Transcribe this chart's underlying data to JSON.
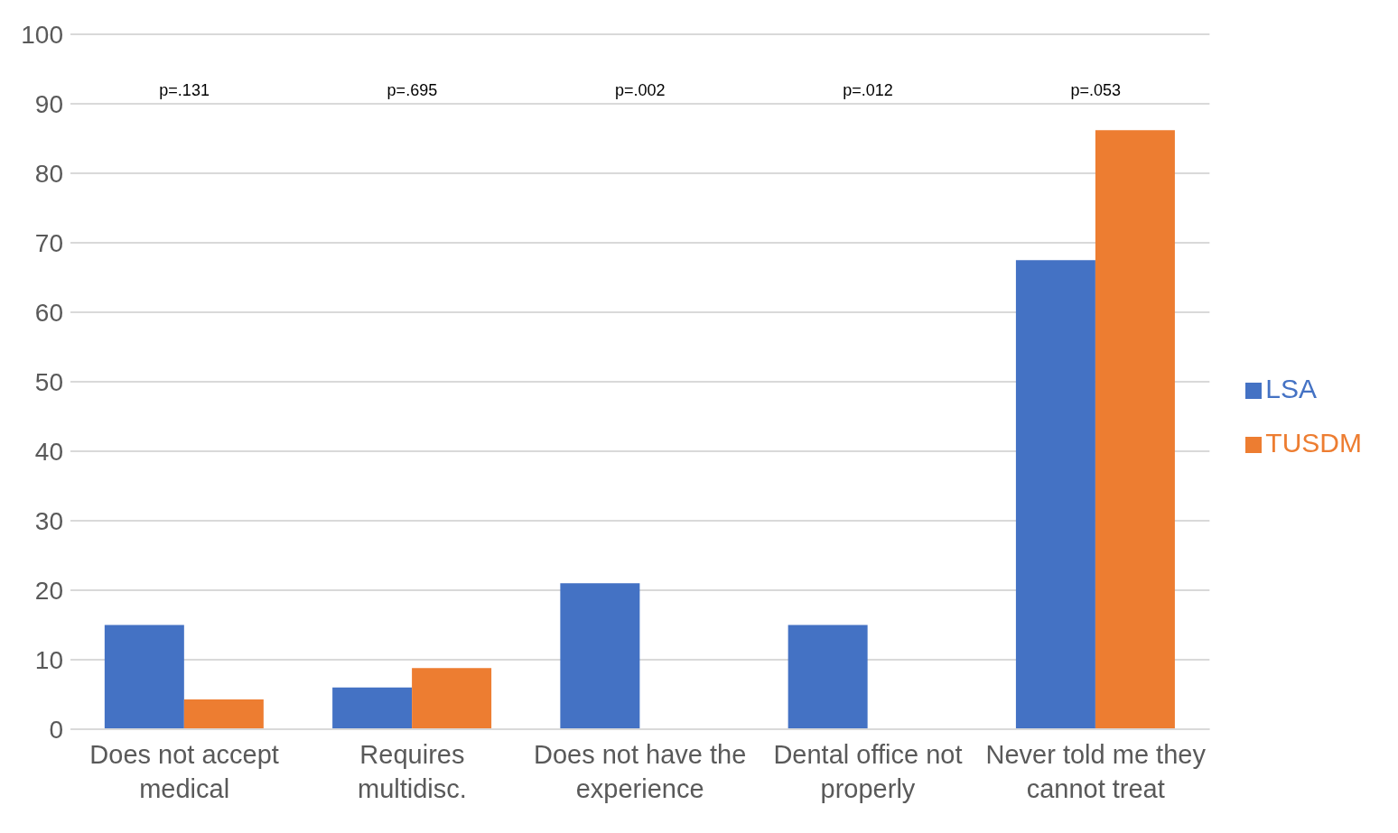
{
  "chart_data": {
    "type": "bar",
    "categories": [
      "Does not accept medical",
      "Requires multidisc.",
      "Does not have the experience",
      "Dental office not properly",
      "Never told me they cannot treat"
    ],
    "series": [
      {
        "name": "LSA",
        "color": "#4472c4",
        "values": [
          15,
          6,
          21,
          15,
          67.5
        ]
      },
      {
        "name": "TUSDM",
        "color": "#ed7d31",
        "values": [
          4.3,
          8.8,
          0,
          0,
          86.2
        ]
      }
    ],
    "ylim": [
      0,
      100
    ],
    "yticks": [
      0,
      10,
      20,
      30,
      40,
      50,
      60,
      70,
      80,
      90,
      100
    ],
    "grid": "y",
    "legend": "right",
    "annotations": [
      "p=.131",
      "p=.695",
      "p=.002",
      "p=.012",
      "p=.053"
    ]
  }
}
